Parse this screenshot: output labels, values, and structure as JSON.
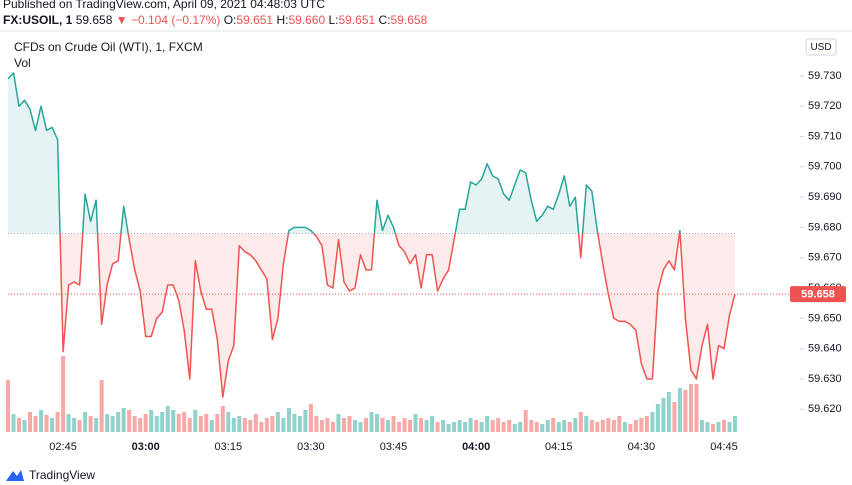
{
  "header": {
    "published": "Published on TradingView.com, April 09, 2021 04:48:03 UTC",
    "symbol": "FX:USOIL, 1",
    "last": "59.658",
    "arrow": "▼",
    "change": "−0.104 (−0.17%)",
    "o_label": "O:",
    "o": "59.651",
    "h_label": "H:",
    "h": "59.660",
    "l_label": "L:",
    "l": "59.651",
    "c_label": "C:",
    "c": "59.658"
  },
  "footer": {
    "brand": "TradingView"
  },
  "chart_data": {
    "type": "line",
    "title": "CFDs on Crude Oil (WTI), 1, FXCM",
    "currency": "USD",
    "categories": [
      null,
      null,
      null,
      null,
      null,
      null,
      null,
      null,
      null,
      null,
      "02:45",
      null,
      null,
      null,
      null,
      null,
      null,
      null,
      null,
      null,
      null,
      null,
      null,
      null,
      null,
      "03:00",
      null,
      null,
      null,
      null,
      null,
      null,
      null,
      null,
      null,
      null,
      null,
      null,
      null,
      null,
      "03:15",
      null,
      null,
      null,
      null,
      null,
      null,
      null,
      null,
      null,
      null,
      null,
      null,
      null,
      null,
      "03:30",
      null,
      null,
      null,
      null,
      null,
      null,
      null,
      null,
      null,
      null,
      null,
      null,
      null,
      null,
      "03:45",
      null,
      null,
      null,
      null,
      null,
      null,
      null,
      null,
      null,
      null,
      null,
      null,
      null,
      null,
      "04:00",
      null,
      null,
      null,
      null,
      null,
      null,
      null,
      null,
      null,
      null,
      null,
      null,
      null,
      null,
      "04:15",
      null,
      null,
      null,
      null,
      null,
      null,
      null,
      null,
      null,
      null,
      null,
      null,
      null,
      null,
      "04:30",
      null,
      null,
      null,
      null,
      null,
      null,
      null,
      null,
      null,
      null,
      null,
      null,
      null,
      null,
      "04:45",
      null,
      null
    ],
    "values": [
      59.729,
      59.731,
      59.72,
      59.722,
      59.719,
      59.712,
      59.72,
      59.712,
      59.713,
      59.709,
      59.639,
      59.661,
      59.662,
      59.661,
      59.691,
      59.682,
      59.689,
      59.648,
      59.661,
      59.668,
      59.669,
      59.687,
      59.676,
      59.666,
      59.659,
      59.644,
      59.644,
      59.65,
      59.652,
      59.661,
      59.661,
      59.656,
      59.646,
      59.63,
      59.669,
      59.659,
      59.653,
      59.653,
      59.643,
      59.624,
      59.636,
      59.641,
      59.674,
      59.672,
      59.671,
      59.669,
      59.666,
      59.663,
      59.643,
      59.65,
      59.668,
      59.679,
      59.68,
      59.68,
      59.68,
      59.679,
      59.677,
      59.674,
      59.661,
      59.66,
      59.676,
      59.662,
      59.659,
      59.66,
      59.671,
      59.666,
      59.666,
      59.689,
      59.679,
      59.684,
      59.68,
      59.674,
      59.672,
      59.668,
      59.671,
      59.66,
      59.671,
      59.671,
      59.659,
      59.663,
      59.666,
      59.676,
      59.686,
      59.686,
      59.695,
      59.694,
      59.696,
      59.701,
      59.697,
      59.696,
      59.691,
      59.689,
      59.694,
      59.699,
      59.698,
      59.689,
      59.682,
      59.684,
      59.687,
      59.686,
      59.691,
      59.697,
      59.687,
      59.69,
      59.67,
      59.694,
      59.692,
      59.679,
      59.668,
      59.658,
      59.65,
      59.649,
      59.649,
      59.648,
      59.646,
      59.635,
      59.63,
      59.63,
      59.659,
      59.666,
      59.669,
      59.666,
      59.679,
      59.65,
      59.633,
      59.63,
      59.641,
      59.648,
      59.63,
      59.641,
      59.64,
      59.651,
      59.658
    ],
    "volume": {
      "name": "Vol",
      "values": [
        52,
        18,
        14,
        12,
        20,
        16,
        22,
        17,
        14,
        20,
        76,
        18,
        14,
        12,
        20,
        16,
        14,
        52,
        18,
        16,
        20,
        24,
        22,
        16,
        14,
        18,
        22,
        16,
        20,
        26,
        22,
        18,
        20,
        14,
        22,
        16,
        18,
        12,
        18,
        26,
        20,
        14,
        16,
        14,
        12,
        18,
        10,
        14,
        16,
        20,
        14,
        24,
        18,
        16,
        22,
        28,
        16,
        12,
        14,
        10,
        18,
        14,
        16,
        12,
        10,
        14,
        20,
        18,
        14,
        12,
        16,
        10,
        14,
        12,
        18,
        14,
        12,
        16,
        10,
        12,
        8,
        10,
        12,
        10,
        14,
        12,
        10,
        16,
        12,
        14,
        10,
        12,
        8,
        10,
        22,
        12,
        10,
        8,
        12,
        14,
        10,
        12,
        10,
        14,
        20,
        16,
        12,
        10,
        12,
        14,
        12,
        16,
        10,
        8,
        12,
        14,
        16,
        20,
        28,
        34,
        40,
        30,
        44,
        42,
        48,
        48,
        12,
        10,
        8,
        10,
        12,
        10,
        16
      ]
    },
    "baseline": 59.678,
    "up_color": "#26a69a",
    "down_color": "#ef5350",
    "ylim": [
      59.6125,
      59.7435
    ],
    "yticks": [
      {
        "value": 59.62,
        "label": "59.620"
      },
      {
        "value": 59.63,
        "label": "59.630"
      },
      {
        "value": 59.64,
        "label": "59.640"
      },
      {
        "value": 59.65,
        "label": "59.650"
      },
      {
        "value": 59.66,
        "label": "59.660"
      },
      {
        "value": 59.67,
        "label": "59.670"
      },
      {
        "value": 59.68,
        "label": "59.680"
      },
      {
        "value": 59.69,
        "label": "59.690"
      },
      {
        "value": 59.7,
        "label": "59.700"
      },
      {
        "value": 59.71,
        "label": "59.710"
      },
      {
        "value": 59.72,
        "label": "59.720"
      },
      {
        "value": 59.73,
        "label": "59.730"
      }
    ],
    "grid": false
  }
}
